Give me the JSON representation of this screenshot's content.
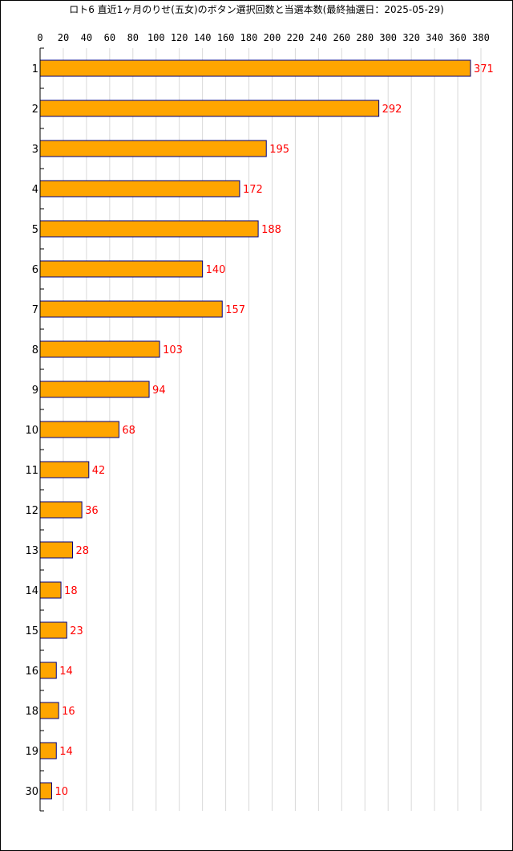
{
  "chart_data": {
    "type": "bar",
    "orientation": "horizontal",
    "title": "ロト6 直近1ヶ月のりせ(五女)のボタン選択回数と当選本数(最終抽選日：2025-05-29)",
    "categories": [
      "1",
      "2",
      "3",
      "4",
      "5",
      "6",
      "7",
      "8",
      "9",
      "10",
      "11",
      "12",
      "13",
      "14",
      "15",
      "16",
      "18",
      "19",
      "30"
    ],
    "values": [
      371,
      292,
      195,
      172,
      188,
      140,
      157,
      103,
      94,
      68,
      42,
      36,
      28,
      18,
      23,
      14,
      16,
      14,
      10
    ],
    "xlim": [
      0,
      380
    ],
    "xticks": [
      0,
      20,
      40,
      60,
      80,
      100,
      120,
      140,
      160,
      180,
      200,
      220,
      240,
      260,
      280,
      300,
      320,
      340,
      360,
      380
    ],
    "xtick_labels": [
      "0",
      "20",
      "40",
      "60",
      "80",
      "100",
      "120",
      "140",
      "160",
      "180",
      "200",
      "220",
      "240",
      "260",
      "280",
      "300",
      "320",
      "340",
      "360",
      "380"
    ],
    "xaxis_position": "top",
    "grid": true,
    "colors": {
      "bar_fill": "#FFA500",
      "bar_stroke": "#000080",
      "label": "#FF0000",
      "grid": "#d9d9d9",
      "axis": "#000000"
    }
  }
}
